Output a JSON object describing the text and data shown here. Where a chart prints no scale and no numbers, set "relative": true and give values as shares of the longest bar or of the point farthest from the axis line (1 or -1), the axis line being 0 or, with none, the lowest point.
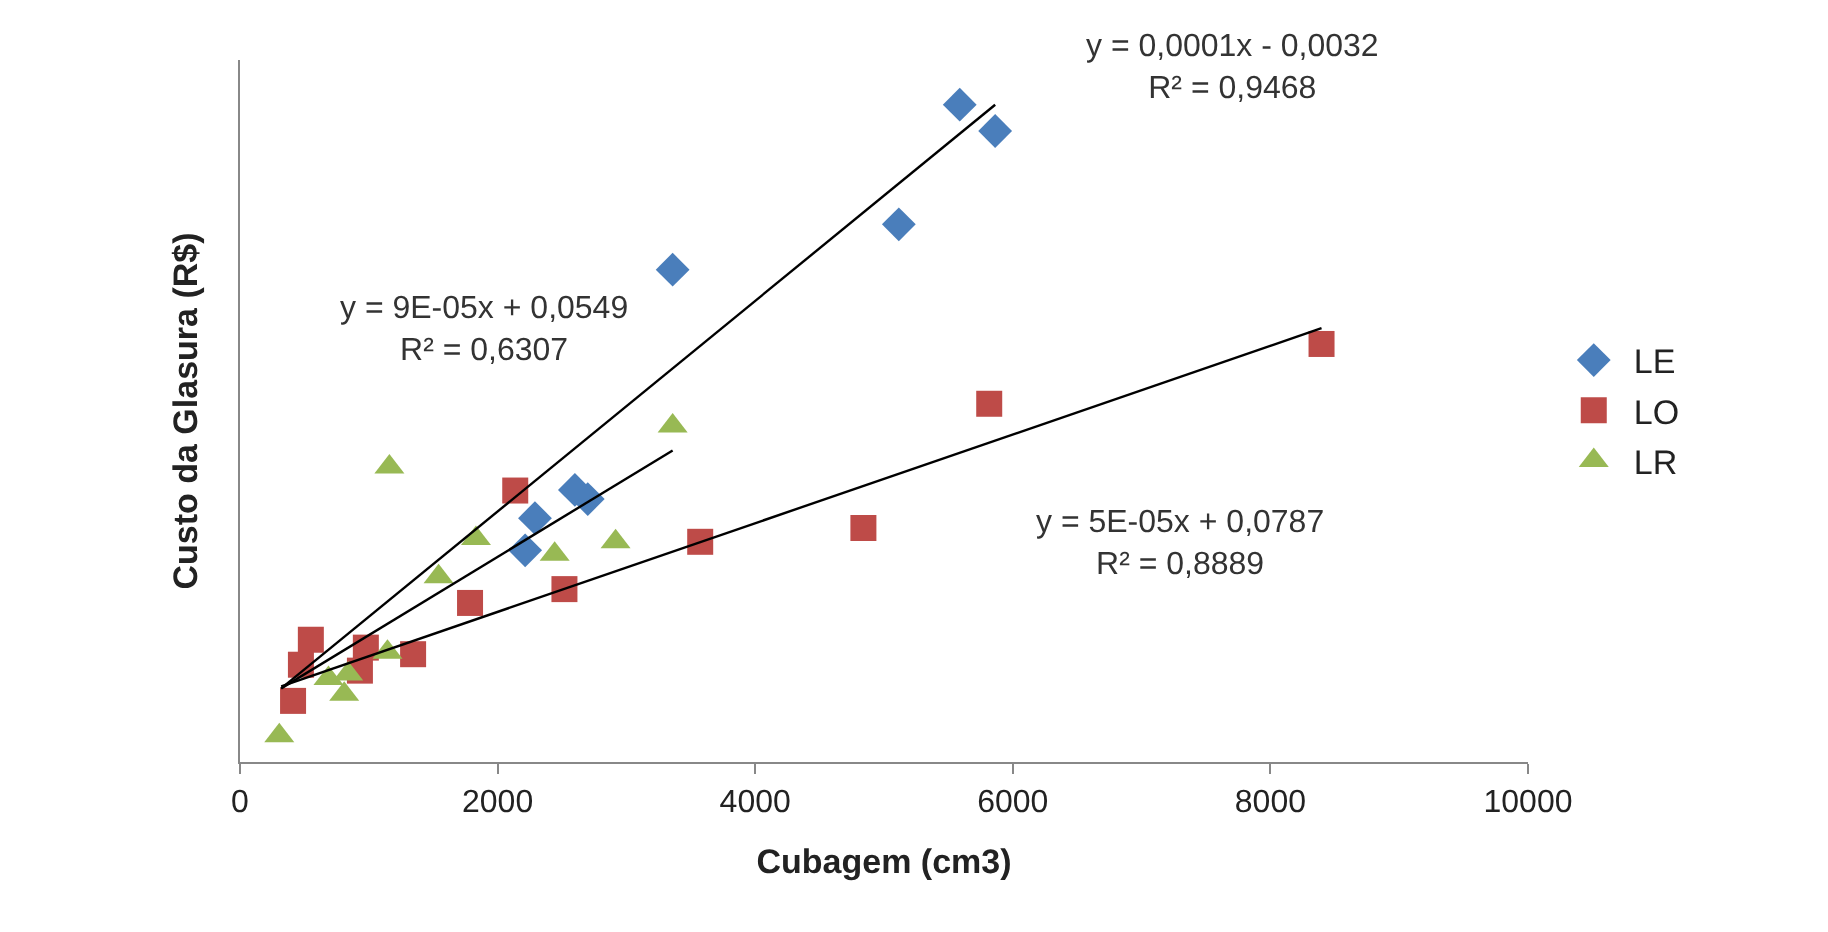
{
  "chart_data": {
    "type": "scatter",
    "relative": true,
    "xlabel": "Cubagem (cm3)",
    "ylabel": "Custo da Glasura (R$)",
    "xlim": [
      0,
      10000
    ],
    "xticks": [
      0,
      2000,
      4000,
      6000,
      8000,
      10000
    ],
    "legend": "right",
    "series": [
      {
        "name": "LE",
        "color": "#4a7ebb",
        "marker": "diamond",
        "x": [
          3359,
          2290,
          2214,
          2600,
          2700,
          5588,
          5863,
          5115
        ],
        "values": [
          0.749,
          0.371,
          0.322,
          0.414,
          0.4,
          1,
          0.96,
          0.818
        ]
      },
      {
        "name": "LO",
        "color": "#be4b48",
        "marker": "square",
        "x": [
          2137,
          3573,
          2519,
          1786,
          1344,
          977,
          550,
          473,
          412,
          931,
          8397,
          5817,
          4840
        ],
        "values": [
          0.413,
          0.335,
          0.263,
          0.242,
          0.164,
          0.174,
          0.186,
          0.148,
          0.093,
          0.139,
          0.636,
          0.545,
          0.356
        ]
      },
      {
        "name": "LR",
        "color": "#98b954",
        "marker": "triangle",
        "x": [
          305,
          809,
          687,
          840,
          1145,
          1542,
          1832,
          2443,
          2916,
          3359,
          1160
        ],
        "values": [
          0.04,
          0.103,
          0.127,
          0.134,
          0.167,
          0.282,
          0.34,
          0.316,
          0.335,
          0.511,
          0.449
        ]
      },
      {
        "type": "line",
        "color": "#000000",
        "x": [
          320,
          5863
        ],
        "values": [
          0.112,
          1.0
        ]
      },
      {
        "type": "line",
        "color": "#000000",
        "x": [
          320,
          8397
        ],
        "values": [
          0.115,
          0.66
        ]
      },
      {
        "type": "line",
        "color": "#000000",
        "x": [
          320,
          3359
        ],
        "values": [
          0.112,
          0.474
        ]
      }
    ],
    "annotations": [
      "y = 0,0001x - 0,0032\nR² = 0,9468",
      "y = 9E-05x + 0,0549\nR² = 0,6307",
      "y = 5E-05x + 0,0787\nR² = 0,8889"
    ]
  }
}
